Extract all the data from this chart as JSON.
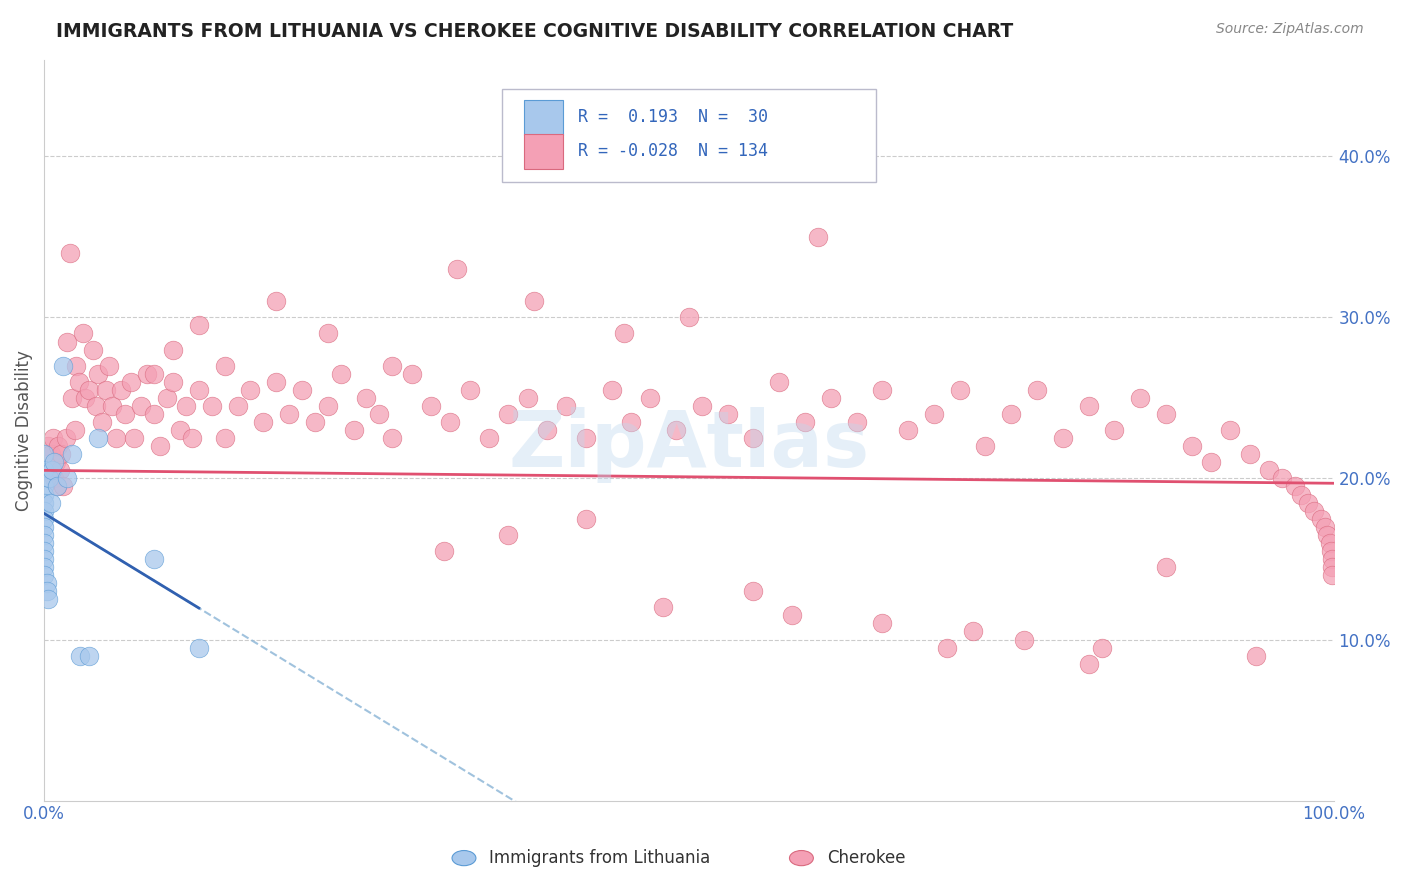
{
  "title": "IMMIGRANTS FROM LITHUANIA VS CHEROKEE COGNITIVE DISABILITY CORRELATION CHART",
  "source": "Source: ZipAtlas.com",
  "ylabel": "Cognitive Disability",
  "xlim": [
    0,
    1.0
  ],
  "ylim": [
    0.0,
    0.46
  ],
  "blue_color": "#A8C8EC",
  "blue_edge_color": "#5B9BD5",
  "pink_color": "#F4A0B5",
  "pink_edge_color": "#D9697E",
  "blue_line_color": "#3060B0",
  "pink_line_color": "#E05070",
  "dash_line_color": "#90B8D8",
  "watermark": "ZipAtlas",
  "r_blue": 0.193,
  "n_blue": 30,
  "r_pink": -0.028,
  "n_pink": 134,
  "blue_scatter_x": [
    0.0,
    0.0,
    0.0,
    0.0,
    0.0,
    0.0,
    0.0,
    0.0,
    0.0,
    0.0,
    0.0,
    0.0,
    0.0,
    0.0,
    0.002,
    0.002,
    0.003,
    0.004,
    0.005,
    0.006,
    0.008,
    0.01,
    0.015,
    0.018,
    0.022,
    0.028,
    0.035,
    0.042,
    0.085,
    0.12
  ],
  "blue_scatter_y": [
    0.215,
    0.205,
    0.195,
    0.19,
    0.185,
    0.18,
    0.175,
    0.17,
    0.165,
    0.16,
    0.155,
    0.15,
    0.145,
    0.14,
    0.135,
    0.13,
    0.125,
    0.2,
    0.185,
    0.205,
    0.21,
    0.195,
    0.27,
    0.2,
    0.215,
    0.09,
    0.09,
    0.225,
    0.15,
    0.095
  ],
  "pink_scatter_x": [
    0.003,
    0.005,
    0.007,
    0.008,
    0.009,
    0.01,
    0.011,
    0.012,
    0.013,
    0.015,
    0.017,
    0.018,
    0.02,
    0.022,
    0.024,
    0.025,
    0.027,
    0.03,
    0.032,
    0.035,
    0.038,
    0.04,
    0.042,
    0.045,
    0.048,
    0.05,
    0.053,
    0.056,
    0.06,
    0.063,
    0.067,
    0.07,
    0.075,
    0.08,
    0.085,
    0.09,
    0.095,
    0.1,
    0.105,
    0.11,
    0.115,
    0.12,
    0.13,
    0.14,
    0.15,
    0.16,
    0.17,
    0.18,
    0.19,
    0.2,
    0.21,
    0.22,
    0.23,
    0.24,
    0.25,
    0.26,
    0.27,
    0.285,
    0.3,
    0.315,
    0.33,
    0.345,
    0.36,
    0.375,
    0.39,
    0.405,
    0.42,
    0.44,
    0.455,
    0.47,
    0.49,
    0.51,
    0.53,
    0.55,
    0.57,
    0.59,
    0.61,
    0.63,
    0.65,
    0.67,
    0.69,
    0.71,
    0.73,
    0.75,
    0.77,
    0.79,
    0.81,
    0.83,
    0.85,
    0.87,
    0.89,
    0.905,
    0.92,
    0.935,
    0.95,
    0.96,
    0.97,
    0.975,
    0.98,
    0.985,
    0.99,
    0.993,
    0.995,
    0.997,
    0.998,
    0.999,
    0.999,
    0.999,
    0.6,
    0.5,
    0.45,
    0.38,
    0.32,
    0.27,
    0.22,
    0.18,
    0.14,
    0.12,
    0.1,
    0.085,
    0.55,
    0.48,
    0.72,
    0.65,
    0.58,
    0.82,
    0.76,
    0.7,
    0.42,
    0.36,
    0.31,
    0.87,
    0.94,
    0.81
  ],
  "pink_scatter_y": [
    0.22,
    0.215,
    0.225,
    0.2,
    0.21,
    0.195,
    0.22,
    0.205,
    0.215,
    0.195,
    0.225,
    0.285,
    0.34,
    0.25,
    0.23,
    0.27,
    0.26,
    0.29,
    0.25,
    0.255,
    0.28,
    0.245,
    0.265,
    0.235,
    0.255,
    0.27,
    0.245,
    0.225,
    0.255,
    0.24,
    0.26,
    0.225,
    0.245,
    0.265,
    0.24,
    0.22,
    0.25,
    0.26,
    0.23,
    0.245,
    0.225,
    0.255,
    0.245,
    0.225,
    0.245,
    0.255,
    0.235,
    0.26,
    0.24,
    0.255,
    0.235,
    0.245,
    0.265,
    0.23,
    0.25,
    0.24,
    0.225,
    0.265,
    0.245,
    0.235,
    0.255,
    0.225,
    0.24,
    0.25,
    0.23,
    0.245,
    0.225,
    0.255,
    0.235,
    0.25,
    0.23,
    0.245,
    0.24,
    0.225,
    0.26,
    0.235,
    0.25,
    0.235,
    0.255,
    0.23,
    0.24,
    0.255,
    0.22,
    0.24,
    0.255,
    0.225,
    0.245,
    0.23,
    0.25,
    0.24,
    0.22,
    0.21,
    0.23,
    0.215,
    0.205,
    0.2,
    0.195,
    0.19,
    0.185,
    0.18,
    0.175,
    0.17,
    0.165,
    0.16,
    0.155,
    0.15,
    0.145,
    0.14,
    0.35,
    0.3,
    0.29,
    0.31,
    0.33,
    0.27,
    0.29,
    0.31,
    0.27,
    0.295,
    0.28,
    0.265,
    0.13,
    0.12,
    0.105,
    0.11,
    0.115,
    0.095,
    0.1,
    0.095,
    0.175,
    0.165,
    0.155,
    0.145,
    0.09,
    0.085
  ]
}
